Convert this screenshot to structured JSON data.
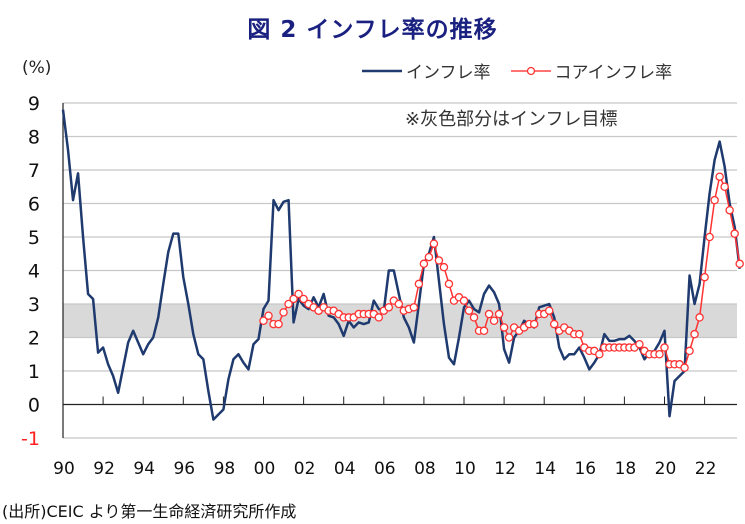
{
  "chart_data": {
    "type": "line",
    "title": "図 2  インフレ率の推移",
    "ylabel": "(%)",
    "xlabel": "",
    "ylim": [
      -1,
      9
    ],
    "yticks": [
      "9",
      "8",
      "7",
      "6",
      "5",
      "4",
      "3",
      "2",
      "1",
      "0",
      "-1"
    ],
    "xticks": [
      "90",
      "92",
      "94",
      "96",
      "98",
      "00",
      "02",
      "04",
      "06",
      "08",
      "10",
      "12",
      "14",
      "16",
      "18",
      "20",
      "22"
    ],
    "x_frequency": "quarterly",
    "shaded_band": {
      "from": 2,
      "to": 3,
      "label": "※灰色部分はインフレ目標"
    },
    "legend_position": "top-right",
    "series": [
      {
        "name": "インフレ率",
        "color": "#1f3a6e",
        "start": 1990.0,
        "values": [
          8.8,
          7.6,
          6.1,
          6.9,
          5.0,
          3.3,
          3.15,
          1.55,
          1.7,
          1.2,
          0.85,
          0.35,
          1.1,
          1.85,
          2.2,
          1.85,
          1.5,
          1.8,
          2.0,
          2.6,
          3.6,
          4.55,
          5.1,
          5.1,
          3.8,
          3.0,
          2.1,
          1.5,
          1.35,
          0.4,
          -0.45,
          -0.3,
          -0.15,
          0.75,
          1.35,
          1.5,
          1.25,
          1.05,
          1.8,
          1.95,
          2.85,
          3.1,
          6.1,
          5.8,
          6.05,
          6.1,
          2.45,
          3.15,
          2.95,
          2.85,
          3.2,
          2.9,
          3.3,
          2.65,
          2.6,
          2.4,
          2.05,
          2.5,
          2.3,
          2.45,
          2.4,
          2.45,
          3.1,
          2.85,
          2.8,
          4.0,
          4.0,
          3.3,
          2.6,
          2.3,
          1.85,
          3.0,
          4.2,
          4.5,
          5.0,
          3.7,
          2.4,
          1.4,
          1.2,
          2.0,
          2.9,
          3.1,
          2.85,
          2.75,
          3.3,
          3.55,
          3.35,
          3.0,
          1.65,
          1.25,
          2.0,
          2.2,
          2.5,
          2.4,
          2.3,
          2.9,
          2.95,
          3.0,
          2.6,
          1.7,
          1.35,
          1.5,
          1.5,
          1.7,
          1.4,
          1.05,
          1.25,
          1.5,
          2.1,
          1.9,
          1.9,
          1.95,
          1.95,
          2.05,
          1.9,
          1.7,
          1.35,
          1.55,
          1.6,
          1.85,
          2.2,
          -0.35,
          0.7,
          0.85,
          1.0,
          3.85,
          3.0,
          3.6,
          5.0,
          6.3,
          7.3,
          7.85,
          7.1,
          6.0,
          5.3,
          4.05
        ]
      },
      {
        "name": "コアインフレ率",
        "color": "#ff3333",
        "start": 2000.0,
        "values": [
          2.5,
          2.65,
          2.4,
          2.4,
          2.75,
          3.0,
          3.15,
          3.3,
          3.15,
          3.0,
          2.9,
          2.8,
          2.9,
          2.8,
          2.8,
          2.7,
          2.6,
          2.6,
          2.6,
          2.7,
          2.7,
          2.7,
          2.7,
          2.6,
          2.8,
          2.9,
          3.1,
          3.0,
          2.8,
          2.85,
          2.9,
          3.6,
          4.2,
          4.4,
          4.8,
          4.3,
          4.1,
          3.6,
          3.1,
          3.2,
          3.1,
          2.8,
          2.6,
          2.2,
          2.2,
          2.7,
          2.5,
          2.7,
          2.3,
          2.0,
          2.3,
          2.2,
          2.3,
          2.4,
          2.4,
          2.7,
          2.7,
          2.8,
          2.4,
          2.2,
          2.3,
          2.2,
          2.1,
          2.1,
          1.7,
          1.6,
          1.6,
          1.5,
          1.7,
          1.7,
          1.7,
          1.7,
          1.7,
          1.7,
          1.7,
          1.8,
          1.6,
          1.5,
          1.5,
          1.5,
          1.7,
          1.2,
          1.2,
          1.2,
          1.1,
          1.6,
          2.1,
          2.6,
          3.8,
          5.0,
          6.1,
          6.8,
          6.5,
          5.8,
          5.1,
          4.2
        ]
      }
    ],
    "source": "(出所)CEIC より第一生命経済研究所作成"
  }
}
